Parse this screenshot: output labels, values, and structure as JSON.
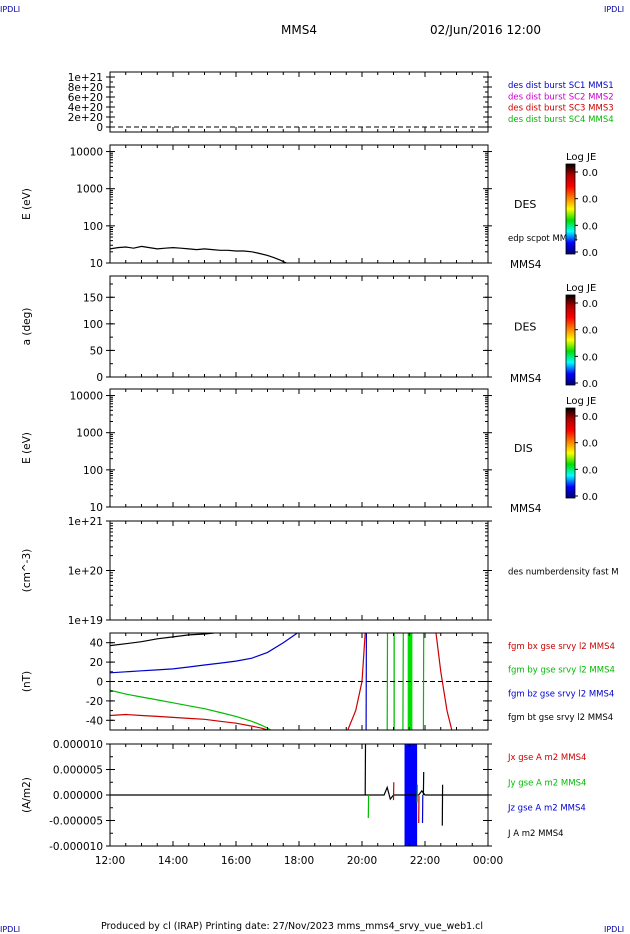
{
  "header": {
    "corner_tl": "IPDLI",
    "corner_tr": "IPDLI",
    "corner_bl": "IPDLI",
    "corner_br": "IPDLI",
    "spacecraft": "MMS4",
    "date": "02/Jun/2016 12:00"
  },
  "footer": {
    "text": "Produced by cl (IRAP)   Printing date: 27/Nov/2023   mms_mms4_srvy_vue_web1.cl"
  },
  "colorbar_color_stops": [
    "#000000",
    "#b00000",
    "#ff0000",
    "#ff8000",
    "#ffff00",
    "#00e000",
    "#00ffff",
    "#0000ff",
    "#000070"
  ],
  "chart_data": [
    {
      "id": "p1",
      "type": "line",
      "scale": "linear",
      "yticks": [
        0,
        2e+20,
        4e+20,
        6e+20,
        8e+20,
        1e+21
      ],
      "ytick_labels": [
        "0",
        "2e+20",
        "4e+20",
        "6e+20",
        "8e+20",
        "1e+21"
      ],
      "ylim": [
        -1e+20,
        1.1e+21
      ],
      "ylabel": "",
      "zero_line": true,
      "legend": [
        {
          "text": "des dist burst SC1 MMS1",
          "color": "#0000cc"
        },
        {
          "text": "des dist burst SC2 MMS2",
          "color": "#cc00cc"
        },
        {
          "text": "des dist burst SC3 MMS3",
          "color": "#cc0000"
        },
        {
          "text": "des dist burst SC4 MMS4",
          "color": "#00bb00"
        }
      ],
      "series": []
    },
    {
      "id": "p2",
      "type": "line",
      "scale": "log",
      "yticks": [
        10,
        100,
        1000,
        10000
      ],
      "ytick_labels": [
        "10",
        "100",
        "1000",
        "10000"
      ],
      "ylim": [
        10,
        15000
      ],
      "ylabel": "E (eV)",
      "label": "DES",
      "sc_label": "MMS4",
      "overlay_label": "edp scpot MMS4",
      "colorbar": {
        "title": "Log JE",
        "ticks": [
          "0.0",
          "0.0",
          "0.0",
          "0.0"
        ]
      },
      "series": [
        {
          "color": "#000000",
          "x": [
            12.0,
            12.25,
            12.5,
            12.75,
            13.0,
            13.25,
            13.5,
            13.75,
            14.0,
            14.25,
            14.5,
            14.75,
            15.0,
            15.25,
            15.5,
            15.75,
            16.0,
            16.25,
            16.5,
            16.75,
            17.0,
            17.2,
            17.4,
            17.6
          ],
          "y": [
            24,
            26,
            27,
            25,
            28,
            26,
            24,
            25,
            26,
            25,
            24,
            23,
            24,
            23,
            22,
            22,
            21,
            21,
            20,
            18,
            16,
            14,
            12,
            10
          ]
        }
      ]
    },
    {
      "id": "p3",
      "type": "line",
      "scale": "linear",
      "yticks": [
        0,
        50,
        100,
        150
      ],
      "ytick_labels": [
        "0",
        "50",
        "100",
        "150"
      ],
      "ylim": [
        0,
        190
      ],
      "ylabel": "a (deg)",
      "label": "DES",
      "sc_label": "MMS4",
      "colorbar": {
        "title": "Log JE",
        "ticks": [
          "0.0",
          "0.0",
          "0.0",
          "0.0"
        ]
      },
      "series": []
    },
    {
      "id": "p4",
      "type": "line",
      "scale": "log",
      "yticks": [
        10,
        100,
        1000,
        10000
      ],
      "ytick_labels": [
        "10",
        "100",
        "1000",
        "10000"
      ],
      "ylim": [
        10,
        15000
      ],
      "ylabel": "E (eV)",
      "label": "DIS",
      "sc_label": "MMS4",
      "colorbar": {
        "title": "Log JE",
        "ticks": [
          "0.0",
          "0.0",
          "0.0",
          "0.0"
        ]
      },
      "series": []
    },
    {
      "id": "p5",
      "type": "line",
      "scale": "log",
      "yticks": [
        1e+19,
        1e+20,
        1e+21
      ],
      "ytick_labels": [
        "1e+19",
        "1e+20",
        "1e+21"
      ],
      "ylim": [
        1e+19,
        1e+21
      ],
      "ylabel": "(cm^-3)",
      "legend": [
        {
          "text": "des numberdensity fast M",
          "color": "#000000"
        }
      ],
      "series": []
    },
    {
      "id": "p6",
      "type": "line",
      "scale": "linear",
      "yticks": [
        -40,
        -20,
        0,
        20,
        40
      ],
      "ytick_labels": [
        "-40",
        "-20",
        "0",
        "20",
        "40"
      ],
      "ylim": [
        -50,
        50
      ],
      "ylabel": "(nT)",
      "zero_line": true,
      "legend": [
        {
          "text": "fgm bx gse srvy l2 MMS4",
          "color": "#cc0000"
        },
        {
          "text": "fgm by gse srvy l2 MMS4",
          "color": "#00bb00"
        },
        {
          "text": "fgm bz gse srvy l2 MMS4",
          "color": "#0000cc"
        },
        {
          "text": "fgm bt gse srvy l2 MMS4",
          "color": "#000000"
        }
      ],
      "series": [
        {
          "color": "#000000",
          "x": [
            12.0,
            12.5,
            13.0,
            13.5,
            14.0,
            14.5,
            15.0,
            15.3
          ],
          "y": [
            37,
            39,
            41,
            44,
            46,
            48,
            49,
            50
          ]
        },
        {
          "color": "#0000cc",
          "x": [
            12.0,
            12.5,
            13.0,
            13.5,
            14.0,
            14.5,
            15.0,
            15.5,
            16.0,
            16.5,
            17.0,
            17.5,
            17.95
          ],
          "y": [
            9,
            10,
            11,
            12,
            13,
            15,
            17,
            19,
            21,
            24,
            30,
            40,
            50
          ]
        },
        {
          "color": "#00bb00",
          "x": [
            12.0,
            12.5,
            13.0,
            13.5,
            14.0,
            14.5,
            15.0,
            15.5,
            16.0,
            16.5,
            16.8,
            17.0,
            17.1
          ],
          "y": [
            -9,
            -13,
            -16,
            -19,
            -22,
            -25,
            -28,
            -32,
            -36,
            -41,
            -45,
            -48,
            -50
          ]
        },
        {
          "color": "#cc0000",
          "x": [
            12.0,
            12.5,
            13.0,
            13.5,
            14.0,
            14.5,
            15.0,
            15.5,
            16.0,
            16.5,
            16.8,
            17.0
          ],
          "y": [
            -35,
            -34,
            -35,
            -36,
            -37,
            -38,
            -39,
            -41,
            -43,
            -46,
            -48,
            -50
          ]
        },
        {
          "color": "#cc0000",
          "x": [
            19.55,
            19.8,
            20.0,
            20.1
          ],
          "y": [
            -50,
            -30,
            0,
            50
          ]
        },
        {
          "color": "#cc0000",
          "x": [
            22.35,
            22.5,
            22.7,
            22.85
          ],
          "y": [
            50,
            10,
            -30,
            -50
          ]
        },
        {
          "color": "#0000cc",
          "x": [
            20.13,
            20.14
          ],
          "y": [
            -50,
            50
          ]
        },
        {
          "color": "#00bb00",
          "x": [
            20.8,
            20.81
          ],
          "y": [
            -50,
            50
          ]
        },
        {
          "color": "#00bb00",
          "x": [
            21.3,
            21.31
          ],
          "y": [
            -50,
            50
          ]
        },
        {
          "color": "#00bb00",
          "x": [
            21.95,
            21.96
          ],
          "y": [
            -50,
            50
          ]
        }
      ],
      "bands": [
        {
          "x0": 21.45,
          "x1": 21.6,
          "color": "#00dd00"
        },
        {
          "x0": 21.0,
          "x1": 21.04,
          "color": "#00bb00"
        }
      ]
    },
    {
      "id": "p7",
      "type": "line",
      "scale": "linear",
      "yticks": [
        -1e-05,
        -5e-06,
        0,
        5e-06,
        1e-05
      ],
      "ytick_labels": [
        "-0.000010",
        "-0.000005",
        "0.000000",
        "0.000005",
        "0.000010"
      ],
      "ylim": [
        -1e-05,
        1e-05
      ],
      "ylabel": "(A/m2)",
      "legend": [
        {
          "text": "Jx gse A m2 MMS4",
          "color": "#cc0000"
        },
        {
          "text": "Jy gse A m2 MMS4",
          "color": "#00bb00"
        },
        {
          "text": "Jz gse A m2 MMS4",
          "color": "#0000cc"
        },
        {
          "text": "J A m2 MMS4",
          "color": "#000000"
        }
      ],
      "xticks": [
        12,
        14,
        16,
        18,
        20,
        22,
        24
      ],
      "xtick_labels": [
        "12:00",
        "14:00",
        "16:00",
        "18:00",
        "20:00",
        "22:00",
        "00:00"
      ],
      "series": [
        {
          "color": "#000000",
          "x": [
            12.0,
            13.0,
            14.0,
            15.0,
            16.0,
            17.0,
            18.0,
            19.0,
            20.0,
            20.7,
            20.8,
            20.9,
            21.0,
            21.8,
            21.9,
            22.0,
            23.0,
            24.0
          ],
          "y": [
            0,
            0,
            0,
            0,
            0,
            0,
            0,
            0,
            0,
            0,
            1.5e-06,
            -8e-07,
            0,
            0,
            8e-07,
            0,
            0,
            0
          ]
        },
        {
          "color": "#000000",
          "x": [
            20.1,
            20.11
          ],
          "y": [
            0,
            1e-05
          ]
        },
        {
          "color": "#000000",
          "x": [
            21.95,
            21.96
          ],
          "y": [
            0,
            4.5e-06
          ]
        },
        {
          "color": "#000000",
          "x": [
            22.55,
            22.56
          ],
          "y": [
            -6e-06,
            2e-06
          ]
        },
        {
          "color": "#cc0000",
          "x": [
            21.0,
            21.01
          ],
          "y": [
            -1e-06,
            2.5e-06
          ]
        },
        {
          "color": "#00bb00",
          "x": [
            21.75,
            21.76
          ],
          "y": [
            -1.5e-06,
            2e-06
          ]
        },
        {
          "color": "#cc0000",
          "x": [
            21.8,
            21.81
          ],
          "y": [
            -5.5e-06,
            -2e-07
          ]
        },
        {
          "color": "#0000cc",
          "x": [
            21.92,
            21.93
          ],
          "y": [
            -5.5e-06,
            0
          ]
        },
        {
          "color": "#00bb00",
          "x": [
            20.2,
            20.21
          ],
          "y": [
            -4.5e-06,
            0
          ]
        }
      ],
      "bands": [
        {
          "x0": 21.35,
          "x1": 21.75,
          "color": "#0000ff"
        }
      ]
    }
  ]
}
